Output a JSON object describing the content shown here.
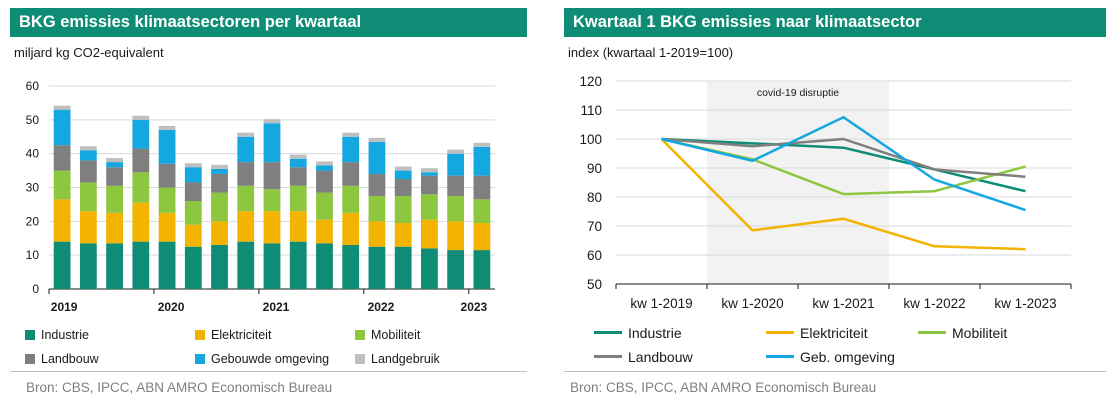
{
  "left": {
    "title": "BKG emissies klimaatsectoren per kwartaal",
    "unit": "miljard kg CO2-equivalent",
    "source": "Bron: CBS, IPCC, ABN AMRO Economisch Bureau"
  },
  "right": {
    "title": "Kwartaal 1 BKG emissies naar klimaatsector",
    "unit": "index (kwartaal 1-2019=100)",
    "source": "Bron: CBS, IPCC, ABN AMRO Economisch Bureau",
    "annotation": "covid-19 disruptie"
  },
  "chart_data": [
    {
      "type": "bar",
      "stacked": true,
      "title": "BKG emissies klimaatsectoren per kwartaal",
      "ylabel": "miljard kg CO2-equivalent",
      "ylim": [
        0,
        60
      ],
      "yticks": [
        0,
        10,
        20,
        30,
        40,
        50,
        60
      ],
      "grid": true,
      "legend_position": "bottom",
      "year_labels": [
        "2019",
        "2020",
        "2021",
        "2022",
        "2023"
      ],
      "categories": [
        "2019 Q1",
        "2019 Q2",
        "2019 Q3",
        "2019 Q4",
        "2020 Q1",
        "2020 Q2",
        "2020 Q3",
        "2020 Q4",
        "2021 Q1",
        "2021 Q2",
        "2021 Q3",
        "2021 Q4",
        "2022 Q1",
        "2022 Q2",
        "2022 Q3",
        "2022 Q4",
        "2023 Q1"
      ],
      "series": [
        {
          "name": "Industrie",
          "color": "#0e8c76",
          "values": [
            14.0,
            13.5,
            13.5,
            14.0,
            14.0,
            12.5,
            13.0,
            14.0,
            13.5,
            14.0,
            13.5,
            13.0,
            12.5,
            12.5,
            12.0,
            11.5,
            11.5
          ]
        },
        {
          "name": "Elektriciteit",
          "color": "#f2b400",
          "values": [
            12.5,
            9.5,
            9.0,
            11.5,
            8.5,
            6.5,
            7.0,
            9.0,
            9.5,
            9.0,
            7.0,
            9.5,
            7.5,
            7.0,
            8.5,
            8.5,
            8.0
          ]
        },
        {
          "name": "Mobiliteit",
          "color": "#8dc63f",
          "values": [
            8.5,
            8.5,
            8.0,
            9.0,
            7.5,
            7.0,
            8.5,
            7.5,
            6.5,
            7.5,
            8.0,
            8.0,
            7.5,
            8.0,
            7.5,
            7.5,
            7.0
          ]
        },
        {
          "name": "Landbouw",
          "color": "#7f7f7f",
          "values": [
            7.5,
            6.5,
            5.5,
            7.0,
            7.0,
            5.5,
            5.5,
            7.0,
            8.0,
            5.5,
            6.5,
            7.0,
            6.5,
            5.0,
            5.5,
            6.0,
            7.0
          ]
        },
        {
          "name": "Gebouwde omgeving",
          "color": "#14a7e0",
          "values": [
            10.5,
            3.0,
            1.5,
            8.5,
            10.0,
            4.5,
            1.5,
            7.5,
            11.5,
            2.5,
            1.5,
            7.5,
            9.5,
            2.5,
            1.0,
            6.5,
            8.5
          ]
        },
        {
          "name": "Landgebruik",
          "color": "#bfbfbf",
          "values": [
            1.2,
            1.2,
            1.2,
            1.2,
            1.2,
            1.2,
            1.2,
            1.2,
            1.2,
            1.2,
            1.2,
            1.2,
            1.2,
            1.2,
            1.2,
            1.2,
            1.2
          ]
        }
      ]
    },
    {
      "type": "line",
      "title": "Kwartaal 1 BKG emissies naar klimaatsector",
      "ylabel": "index (kwartaal 1-2019=100)",
      "ylim": [
        50,
        120
      ],
      "yticks": [
        50,
        60,
        70,
        80,
        90,
        100,
        110,
        120
      ],
      "grid": true,
      "legend_position": "bottom",
      "categories": [
        "kw 1-2019",
        "kw 1-2020",
        "kw 1-2021",
        "kw 1-2022",
        "kw 1-2023"
      ],
      "shaded_region": {
        "from": "kw 1-2020",
        "to": "kw 1-2022",
        "label": "covid-19 disruptie"
      },
      "series": [
        {
          "name": "Industrie",
          "color": "#0e8c76",
          "values": [
            100,
            98.5,
            97,
            89.5,
            82
          ]
        },
        {
          "name": "Elektriciteit",
          "color": "#f2b400",
          "values": [
            100,
            68.5,
            72.5,
            63,
            62
          ]
        },
        {
          "name": "Mobiliteit",
          "color": "#8dc63f",
          "values": [
            100,
            93,
            81,
            82,
            90.5
          ]
        },
        {
          "name": "Landbouw",
          "color": "#7f7f7f",
          "values": [
            100,
            97.5,
            100,
            89.5,
            87
          ]
        },
        {
          "name": "Geb. omgeving",
          "color": "#14a7e0",
          "values": [
            100,
            92.5,
            107.5,
            86,
            75.5
          ]
        }
      ]
    }
  ]
}
